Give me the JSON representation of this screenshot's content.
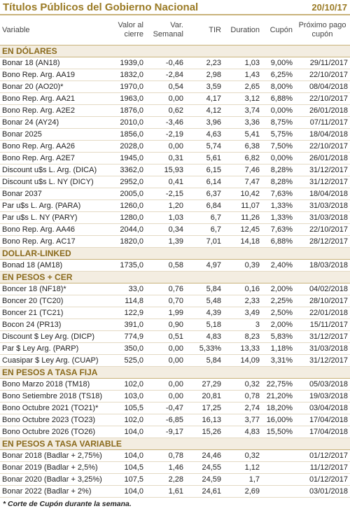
{
  "header": {
    "title": "Títulos Públicos del Gobierno Nacional",
    "date": "20/10/17"
  },
  "columns": [
    "Variable",
    "Valor al cierre",
    "Var. Semanal",
    "TIR",
    "Duration",
    "Cupón",
    "Próximo pago cupón"
  ],
  "sections": [
    {
      "title": "EN DÓLARES",
      "rows": [
        [
          "Bonar 18 (AN18)",
          "1939,0",
          "-0,46",
          "2,23",
          "1,03",
          "9,00%",
          "29/11/2017"
        ],
        [
          "Bono Rep. Arg. AA19",
          "1832,0",
          "-2,84",
          "2,98",
          "1,43",
          "6,25%",
          "22/10/2017"
        ],
        [
          "Bonar 20 (AO20)*",
          "1970,0",
          "0,54",
          "3,59",
          "2,65",
          "8,00%",
          "08/04/2018"
        ],
        [
          "Bono Rep. Arg. AA21",
          "1963,0",
          "0,00",
          "4,17",
          "3,12",
          "6,88%",
          "22/10/2017"
        ],
        [
          "Bono Rep. Arg. A2E2",
          "1876,0",
          "0,62",
          "4,12",
          "3,74",
          "0,00%",
          "26/01/2018"
        ],
        [
          "Bonar 24 (AY24)",
          "2010,0",
          "-3,46",
          "3,96",
          "3,36",
          "8,75%",
          "07/11/2017"
        ],
        [
          "Bonar 2025",
          "1856,0",
          "-2,19",
          "4,63",
          "5,41",
          "5,75%",
          "18/04/2018"
        ],
        [
          "Bono Rep. Arg. AA26",
          "2028,0",
          "0,00",
          "5,74",
          "6,38",
          "7,50%",
          "22/10/2017"
        ],
        [
          "Bono Rep. Arg. A2E7",
          "1945,0",
          "0,31",
          "5,61",
          "6,82",
          "0,00%",
          "26/01/2018"
        ],
        [
          "Discount u$s L. Arg. (DICA)",
          "3362,0",
          "15,93",
          "6,15",
          "7,46",
          "8,28%",
          "31/12/2017"
        ],
        [
          "Discount u$s L. NY (DICY)",
          "2952,0",
          "0,41",
          "6,14",
          "7,47",
          "8,28%",
          "31/12/2017"
        ],
        [
          "Bonar 2037",
          "2005,0",
          "-2,15",
          "6,37",
          "10,42",
          "7,63%",
          "18/04/2018"
        ],
        [
          "Par u$s L. Arg. (PARA)",
          "1260,0",
          "1,20",
          "6,84",
          "11,07",
          "1,33%",
          "31/03/2018"
        ],
        [
          "Par u$s L. NY (PARY)",
          "1280,0",
          "1,03",
          "6,7",
          "11,26",
          "1,33%",
          "31/03/2018"
        ],
        [
          "Bono Rep. Arg. AA46",
          "2044,0",
          "0,34",
          "6,7",
          "12,45",
          "7,63%",
          "22/10/2017"
        ],
        [
          "Bono Rep. Arg. AC17",
          "1820,0",
          "1,39",
          "7,01",
          "14,18",
          "6,88%",
          "28/12/2017"
        ]
      ]
    },
    {
      "title": "DOLLAR-LINKED",
      "rows": [
        [
          "Bonad 18 (AM18)",
          "1735,0",
          "0,58",
          "4,97",
          "0,39",
          "2,40%",
          "18/03/2018"
        ]
      ]
    },
    {
      "title": "EN PESOS + CER",
      "rows": [
        [
          "Boncer 18 (NF18)*",
          "33,0",
          "0,76",
          "5,84",
          "0,16",
          "2,00%",
          "04/02/2018"
        ],
        [
          "Boncer 20 (TC20)",
          "114,8",
          "0,70",
          "5,48",
          "2,33",
          "2,25%",
          "28/10/2017"
        ],
        [
          "Boncer 21 (TC21)",
          "122,9",
          "1,99",
          "4,39",
          "3,49",
          "2,50%",
          "22/01/2018"
        ],
        [
          "Bocon 24 (PR13)",
          "391,0",
          "0,90",
          "5,18",
          "3",
          "2,00%",
          "15/11/2017"
        ],
        [
          "Discount $ Ley Arg. (DICP)",
          "774,9",
          "0,51",
          "4,83",
          "8,23",
          "5,83%",
          "31/12/2017"
        ],
        [
          "Par $ Ley Arg. (PARP)",
          "350,0",
          "0,00",
          "5,33%",
          "13,33",
          "1,18%",
          "31/03/2018"
        ],
        [
          "Cuasipar $ Ley Arg. (CUAP)",
          "525,0",
          "0,00",
          "5,84",
          "14,09",
          "3,31%",
          "31/12/2017"
        ]
      ]
    },
    {
      "title": "EN PESOS A TASA FIJA",
      "rows": [
        [
          "Bono Marzo 2018 (TM18)",
          "102,0",
          "0,00",
          "27,29",
          "0,32",
          "22,75%",
          "05/03/2018"
        ],
        [
          "Bono Setiembre 2018 (TS18)",
          "103,0",
          "0,00",
          "20,81",
          "0,78",
          "21,20%",
          "19/03/2018"
        ],
        [
          "Bono Octubre 2021 (TO21)*",
          "105,5",
          "-0,47",
          "17,25",
          "2,74",
          "18,20%",
          "03/04/2018"
        ],
        [
          "Bono Octubre 2023 (TO23)",
          "102,0",
          "-6,85",
          "16,13",
          "3,77",
          "16,00%",
          "17/04/2018"
        ],
        [
          "Bono Octubre 2026 (TO26)",
          "104,0",
          "-9,17",
          "15,26",
          "4,83",
          "15,50%",
          "17/04/2018"
        ]
      ]
    },
    {
      "title": "EN PESOS A TASA VARIABLE",
      "rows": [
        [
          "Bonar 2018 (Badlar + 2,75%)",
          "104,0",
          "0,78",
          "24,46",
          "0,32",
          null,
          "01/12/2017"
        ],
        [
          "Bonar 2019 (Badlar + 2,5%)",
          "104,5",
          "1,46",
          "24,55",
          "1,12",
          null,
          "11/12/2017"
        ],
        [
          "Bonar 2020 (Badlar + 3,25%)",
          "107,5",
          "2,28",
          "24,59",
          "1,7",
          null,
          "01/12/2017"
        ],
        [
          "Bonar 2022 (Badlar + 2%)",
          "104,0",
          "1,61",
          "24,61",
          "2,69",
          null,
          "03/01/2018"
        ]
      ]
    }
  ],
  "footnote": "* Corte de Cupón durante la semana."
}
